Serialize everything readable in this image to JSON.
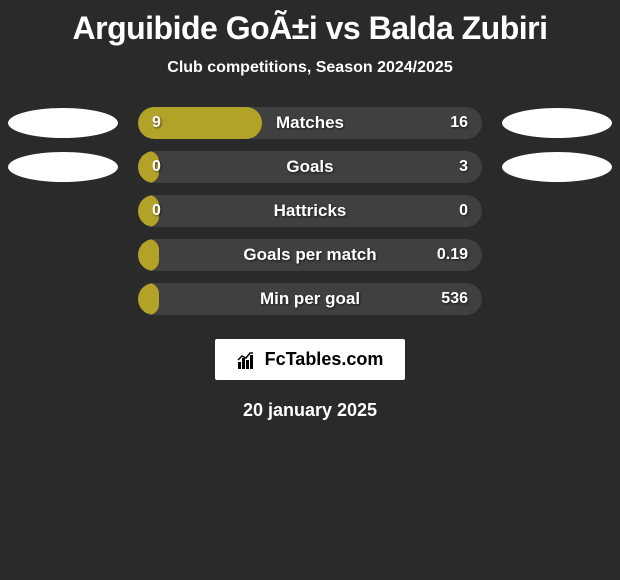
{
  "title": "Arguibide GoÃ±i vs Balda Zubiri",
  "subtitle": "Club competitions, Season 2024/2025",
  "colors": {
    "background": "#2a2a2a",
    "bar_bg": "#404040",
    "bar_fill": "#b3a228",
    "text": "#ffffff",
    "ellipse": "#ffffff",
    "branding_bg": "#ffffff",
    "branding_text": "#000000"
  },
  "stats": [
    {
      "label": "Matches",
      "left_value": "9",
      "right_value": "16",
      "fill_pct": 36,
      "show_ellipses": true
    },
    {
      "label": "Goals",
      "left_value": "0",
      "right_value": "3",
      "fill_pct": 6,
      "show_ellipses": true
    },
    {
      "label": "Hattricks",
      "left_value": "0",
      "right_value": "0",
      "fill_pct": 6,
      "show_ellipses": false
    },
    {
      "label": "Goals per match",
      "left_value": "",
      "right_value": "0.19",
      "fill_pct": 6,
      "show_ellipses": false
    },
    {
      "label": "Min per goal",
      "left_value": "",
      "right_value": "536",
      "fill_pct": 6,
      "show_ellipses": false
    }
  ],
  "branding": "FcTables.com",
  "date": "20 january 2025"
}
